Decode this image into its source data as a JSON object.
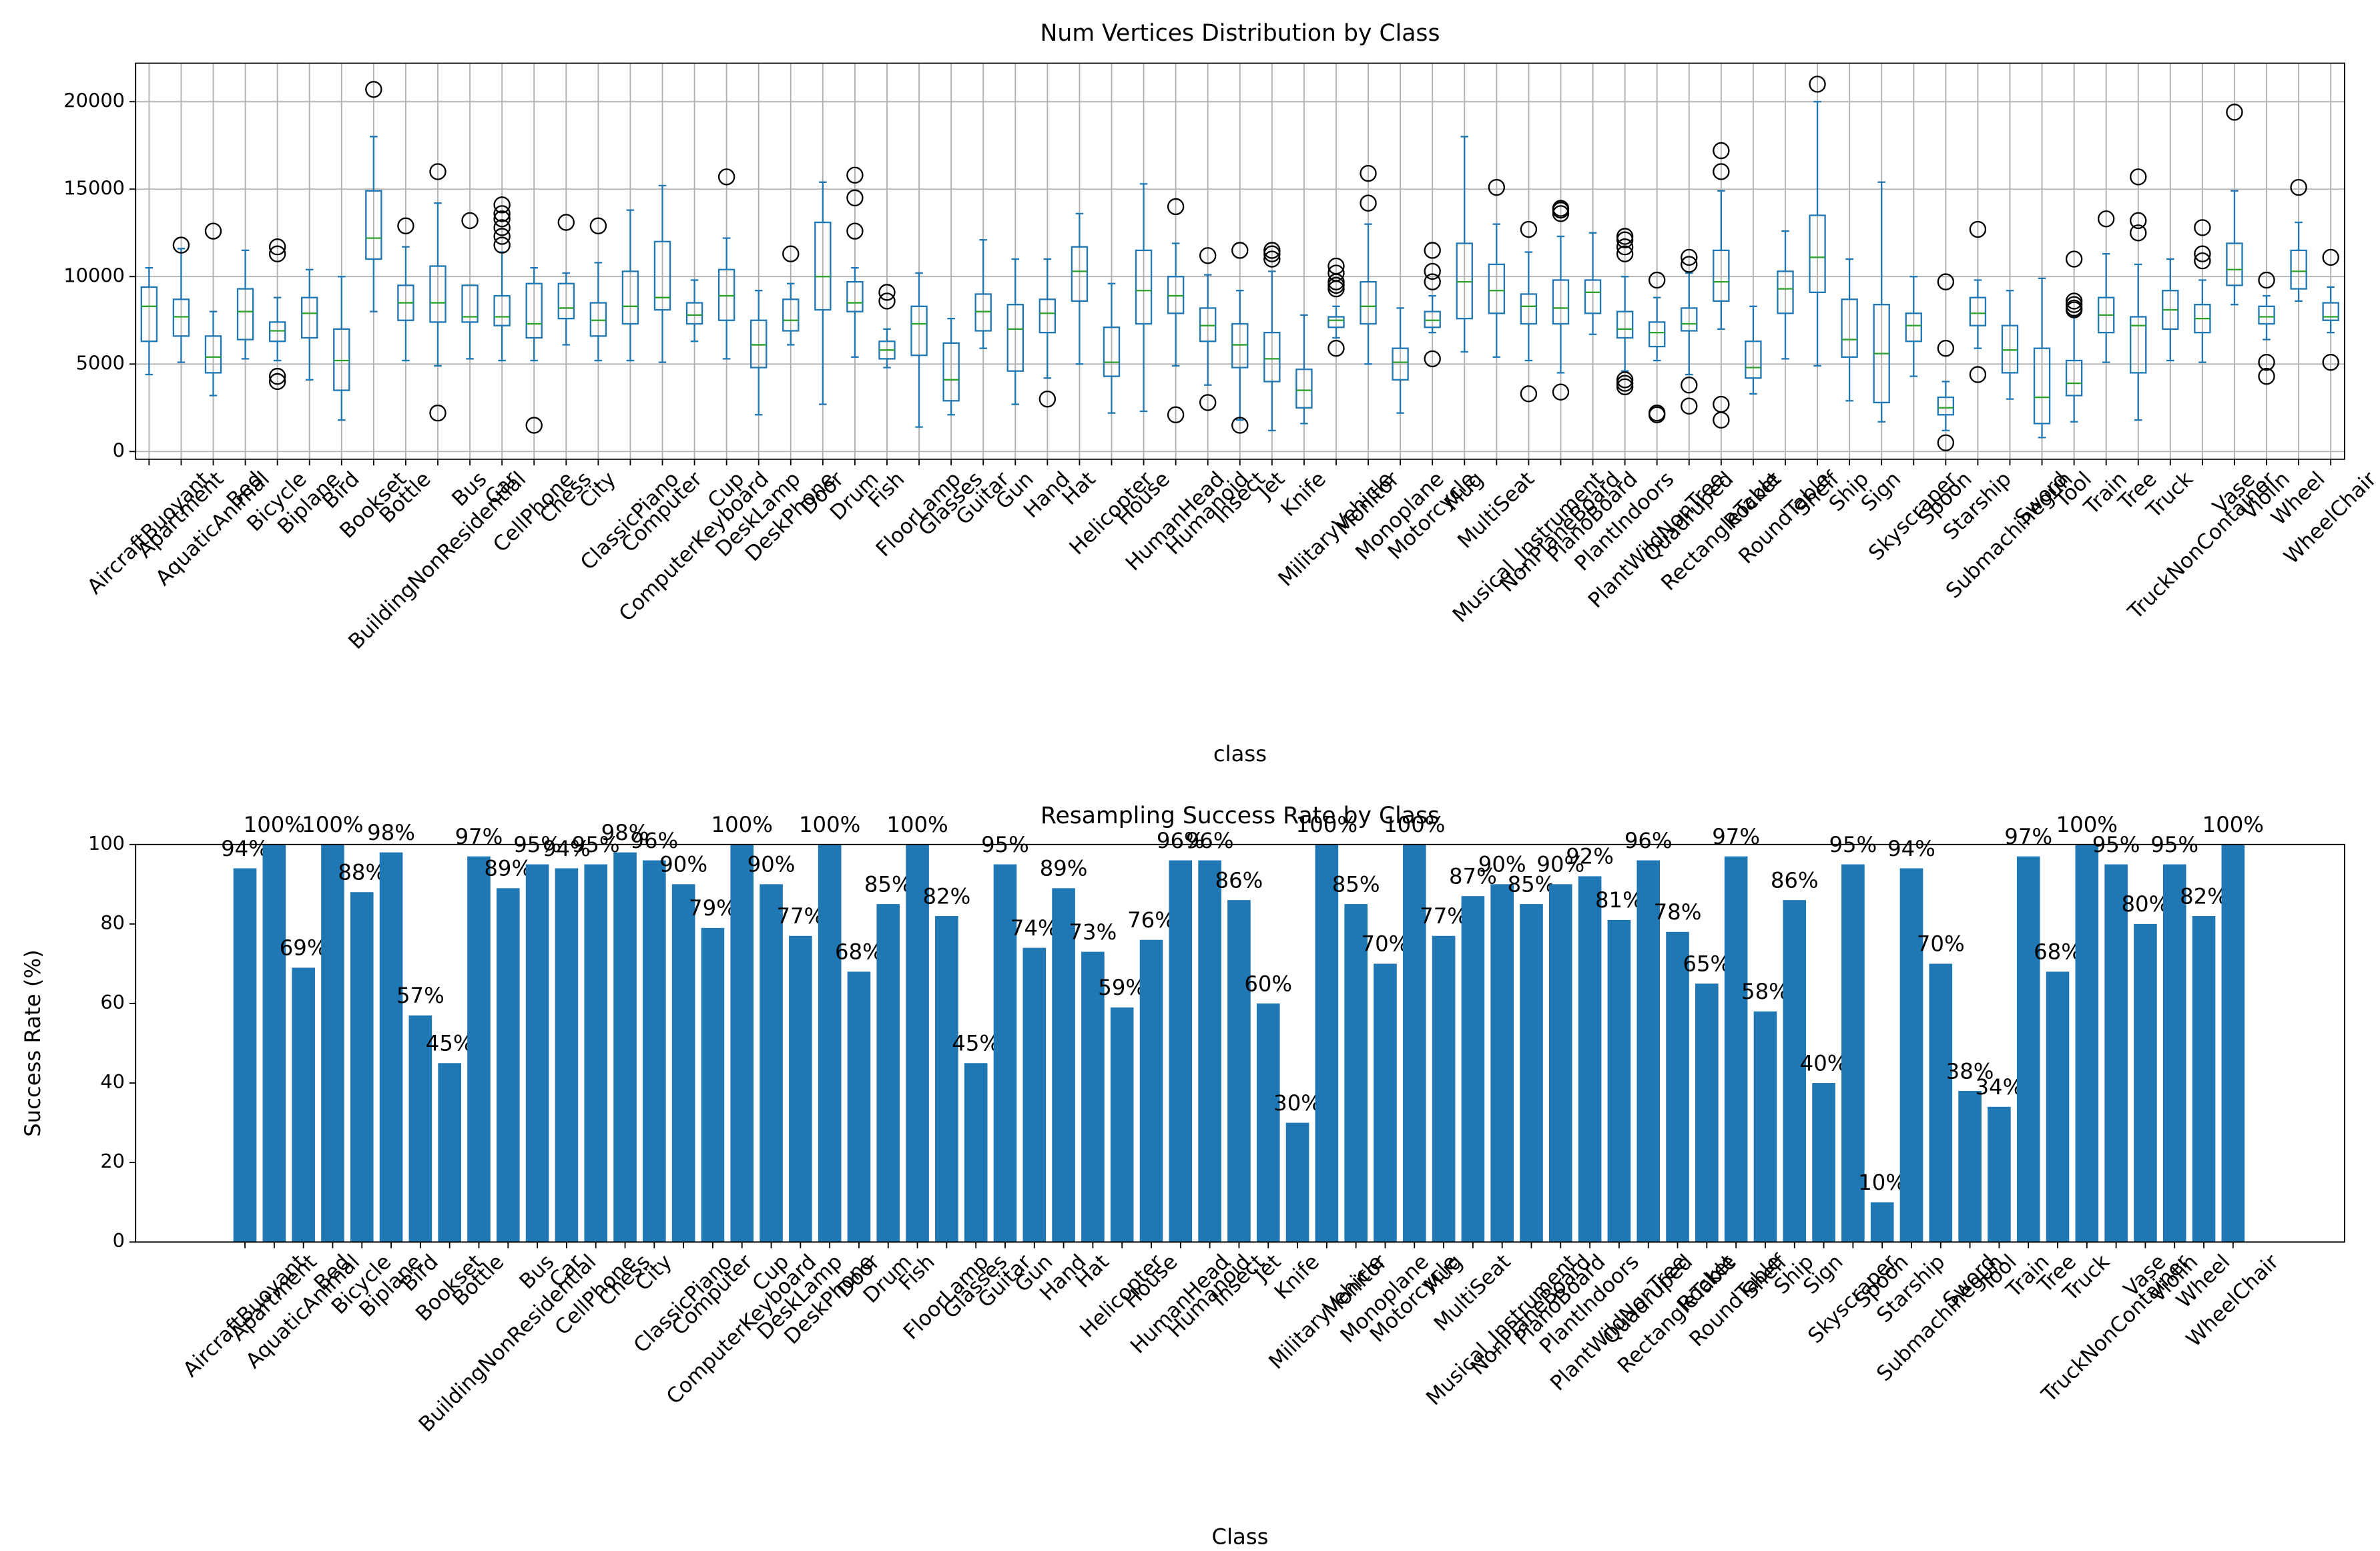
{
  "chart_data": [
    {
      "type": "box",
      "title": "Num Vertices Distribution by Class",
      "xlabel": "class",
      "categories": [
        "AircraftBuoyant",
        "Apartment",
        "AquaticAnimal",
        "Bed",
        "Bicycle",
        "Biplane",
        "Bird",
        "Bookset",
        "Bottle",
        "BuildingNonResidential",
        "Bus",
        "Car",
        "CellPhone",
        "Chess",
        "City",
        "ClassicPiano",
        "Computer",
        "ComputerKeyboard",
        "Cup",
        "DeskLamp",
        "DeskPhone",
        "Door",
        "Drum",
        "Fish",
        "FloorLamp",
        "Glasses",
        "Guitar",
        "Gun",
        "Hand",
        "Hat",
        "Helicopter",
        "House",
        "HumanHead",
        "Humanoid",
        "Insect",
        "Jet",
        "Knife",
        "MilitaryVehicle",
        "Monitor",
        "Monoplane",
        "Motorcycle",
        "Mug",
        "MultiSeat",
        "Musical_Instrument",
        "NonPlaneBoard",
        "PianoBoard",
        "PlantIndoors",
        "PlantWildNonTree",
        "Quadruped",
        "RectangleTable",
        "Rocket",
        "RoundTable",
        "Shelf",
        "Ship",
        "Sign",
        "Skyscraper",
        "Spoon",
        "Starship",
        "Submachinegun",
        "Sword",
        "Tool",
        "Train",
        "Tree",
        "Truck",
        "TruckNonContainer",
        "Vase",
        "Violin",
        "Wheel",
        "WheelChair"
      ],
      "boxes": [
        {
          "whislo": 4400,
          "q1": 6300,
          "med": 8300,
          "q3": 9400,
          "whishi": 10500,
          "fliers": []
        },
        {
          "whislo": 5100,
          "q1": 6600,
          "med": 7700,
          "q3": 8700,
          "whishi": 11600,
          "fliers": [
            11800
          ]
        },
        {
          "whislo": 3200,
          "q1": 4500,
          "med": 5400,
          "q3": 6600,
          "whishi": 8000,
          "fliers": [
            12600
          ]
        },
        {
          "whislo": 5300,
          "q1": 6400,
          "med": 8000,
          "q3": 9300,
          "whishi": 11500,
          "fliers": []
        },
        {
          "whislo": 5200,
          "q1": 6300,
          "med": 6900,
          "q3": 7400,
          "whishi": 8800,
          "fliers": [
            4000,
            4300,
            11300,
            11700
          ]
        },
        {
          "whislo": 4100,
          "q1": 6500,
          "med": 7900,
          "q3": 8800,
          "whishi": 10400,
          "fliers": []
        },
        {
          "whislo": 1800,
          "q1": 3500,
          "med": 5200,
          "q3": 7000,
          "whishi": 10000,
          "fliers": []
        },
        {
          "whislo": 8000,
          "q1": 11000,
          "med": 12200,
          "q3": 14900,
          "whishi": 18000,
          "fliers": [
            20700
          ]
        },
        {
          "whislo": 5200,
          "q1": 7500,
          "med": 8500,
          "q3": 9500,
          "whishi": 11700,
          "fliers": [
            12900
          ]
        },
        {
          "whislo": 4900,
          "q1": 7400,
          "med": 8500,
          "q3": 10600,
          "whishi": 14200,
          "fliers": [
            2200,
            16000
          ]
        },
        {
          "whislo": 5300,
          "q1": 7400,
          "med": 7700,
          "q3": 9500,
          "whishi": 9500,
          "fliers": [
            13200
          ]
        },
        {
          "whislo": 5200,
          "q1": 7200,
          "med": 7700,
          "q3": 8900,
          "whishi": 11400,
          "fliers": [
            11800,
            12300,
            12800,
            13300,
            13600,
            14100
          ]
        },
        {
          "whislo": 5200,
          "q1": 6500,
          "med": 7300,
          "q3": 9600,
          "whishi": 10500,
          "fliers": [
            1500
          ]
        },
        {
          "whislo": 6100,
          "q1": 7600,
          "med": 8200,
          "q3": 9600,
          "whishi": 10200,
          "fliers": [
            13100
          ]
        },
        {
          "whislo": 5200,
          "q1": 6600,
          "med": 7500,
          "q3": 8500,
          "whishi": 10800,
          "fliers": [
            12900
          ]
        },
        {
          "whislo": 5200,
          "q1": 7300,
          "med": 8300,
          "q3": 10300,
          "whishi": 13800,
          "fliers": []
        },
        {
          "whislo": 5100,
          "q1": 8100,
          "med": 8800,
          "q3": 12000,
          "whishi": 15200,
          "fliers": []
        },
        {
          "whislo": 6300,
          "q1": 7300,
          "med": 7800,
          "q3": 8500,
          "whishi": 9800,
          "fliers": []
        },
        {
          "whislo": 5300,
          "q1": 7500,
          "med": 8900,
          "q3": 10400,
          "whishi": 12200,
          "fliers": [
            15700
          ]
        },
        {
          "whislo": 2100,
          "q1": 4800,
          "med": 6100,
          "q3": 7500,
          "whishi": 9200,
          "fliers": []
        },
        {
          "whislo": 6100,
          "q1": 6900,
          "med": 7500,
          "q3": 8700,
          "whishi": 9600,
          "fliers": [
            11300
          ]
        },
        {
          "whislo": 2700,
          "q1": 8100,
          "med": 10000,
          "q3": 13100,
          "whishi": 15400,
          "fliers": []
        },
        {
          "whislo": 5400,
          "q1": 8000,
          "med": 8500,
          "q3": 9700,
          "whishi": 10500,
          "fliers": [
            12600,
            14500,
            15800
          ]
        },
        {
          "whislo": 4800,
          "q1": 5300,
          "med": 5800,
          "q3": 6300,
          "whishi": 7000,
          "fliers": [
            8600,
            9100
          ]
        },
        {
          "whislo": 1400,
          "q1": 5500,
          "med": 7300,
          "q3": 8300,
          "whishi": 10200,
          "fliers": []
        },
        {
          "whislo": 2100,
          "q1": 2900,
          "med": 4100,
          "q3": 6200,
          "whishi": 7600,
          "fliers": []
        },
        {
          "whislo": 5900,
          "q1": 6900,
          "med": 8000,
          "q3": 9000,
          "whishi": 12100,
          "fliers": []
        },
        {
          "whislo": 2700,
          "q1": 4600,
          "med": 7000,
          "q3": 8400,
          "whishi": 11000,
          "fliers": []
        },
        {
          "whislo": 4200,
          "q1": 6800,
          "med": 7900,
          "q3": 8700,
          "whishi": 11000,
          "fliers": [
            3000
          ]
        },
        {
          "whislo": 5000,
          "q1": 8600,
          "med": 10300,
          "q3": 11700,
          "whishi": 13600,
          "fliers": []
        },
        {
          "whislo": 2200,
          "q1": 4300,
          "med": 5100,
          "q3": 7100,
          "whishi": 9600,
          "fliers": []
        },
        {
          "whislo": 2300,
          "q1": 7300,
          "med": 9200,
          "q3": 11500,
          "whishi": 15300,
          "fliers": []
        },
        {
          "whislo": 4900,
          "q1": 7900,
          "med": 8900,
          "q3": 10000,
          "whishi": 11900,
          "fliers": [
            2100,
            14000
          ]
        },
        {
          "whislo": 3800,
          "q1": 6300,
          "med": 7200,
          "q3": 8200,
          "whishi": 10100,
          "fliers": [
            2800,
            11200
          ]
        },
        {
          "whislo": 1800,
          "q1": 4800,
          "med": 6100,
          "q3": 7300,
          "whishi": 9200,
          "fliers": [
            1500,
            11500
          ]
        },
        {
          "whislo": 1200,
          "q1": 4000,
          "med": 5300,
          "q3": 6800,
          "whishi": 10300,
          "fliers": [
            11000,
            11300,
            11500
          ]
        },
        {
          "whislo": 1600,
          "q1": 2500,
          "med": 3500,
          "q3": 4700,
          "whishi": 7800,
          "fliers": []
        },
        {
          "whislo": 6500,
          "q1": 7100,
          "med": 7500,
          "q3": 7700,
          "whishi": 8300,
          "fliers": [
            5900,
            9300,
            9500,
            9700,
            10200,
            10600
          ]
        },
        {
          "whislo": 5000,
          "q1": 7300,
          "med": 8300,
          "q3": 9700,
          "whishi": 13000,
          "fliers": [
            14200,
            15900
          ]
        },
        {
          "whislo": 2200,
          "q1": 4100,
          "med": 5100,
          "q3": 5900,
          "whishi": 8200,
          "fliers": []
        },
        {
          "whislo": 6800,
          "q1": 7100,
          "med": 7500,
          "q3": 8000,
          "whishi": 8900,
          "fliers": [
            5300,
            9700,
            10300,
            11500
          ]
        },
        {
          "whislo": 5700,
          "q1": 7600,
          "med": 9700,
          "q3": 11900,
          "whishi": 18000,
          "fliers": []
        },
        {
          "whislo": 5400,
          "q1": 7900,
          "med": 9200,
          "q3": 10700,
          "whishi": 13000,
          "fliers": [
            15100
          ]
        },
        {
          "whislo": 5200,
          "q1": 7300,
          "med": 8300,
          "q3": 9000,
          "whishi": 11400,
          "fliers": [
            3300,
            12700
          ]
        },
        {
          "whislo": 4500,
          "q1": 7300,
          "med": 8200,
          "q3": 9800,
          "whishi": 12300,
          "fliers": [
            3400,
            13600,
            13800,
            13900
          ]
        },
        {
          "whislo": 6700,
          "q1": 7900,
          "med": 9100,
          "q3": 9800,
          "whishi": 12500,
          "fliers": []
        },
        {
          "whislo": 4600,
          "q1": 6500,
          "med": 7000,
          "q3": 8000,
          "whishi": 10000,
          "fliers": [
            3700,
            3900,
            4100,
            11300,
            11700,
            12100,
            12300
          ]
        },
        {
          "whislo": 5200,
          "q1": 6000,
          "med": 6800,
          "q3": 7400,
          "whishi": 8800,
          "fliers": [
            2100,
            2200,
            9800
          ]
        },
        {
          "whislo": 4400,
          "q1": 6900,
          "med": 7300,
          "q3": 8200,
          "whishi": 10200,
          "fliers": [
            2600,
            3800,
            10700,
            11100
          ]
        },
        {
          "whislo": 7000,
          "q1": 8600,
          "med": 9700,
          "q3": 11500,
          "whishi": 14900,
          "fliers": [
            1800,
            2700,
            16000,
            17200
          ]
        },
        {
          "whislo": 3300,
          "q1": 4200,
          "med": 4800,
          "q3": 6300,
          "whishi": 8300,
          "fliers": []
        },
        {
          "whislo": 5300,
          "q1": 7900,
          "med": 9300,
          "q3": 10300,
          "whishi": 12600,
          "fliers": []
        },
        {
          "whislo": 4900,
          "q1": 9100,
          "med": 11100,
          "q3": 13500,
          "whishi": 20000,
          "fliers": [
            21000
          ]
        },
        {
          "whislo": 2900,
          "q1": 5400,
          "med": 6400,
          "q3": 8700,
          "whishi": 11000,
          "fliers": []
        },
        {
          "whislo": 1700,
          "q1": 2800,
          "med": 5600,
          "q3": 8400,
          "whishi": 15400,
          "fliers": []
        },
        {
          "whislo": 4300,
          "q1": 6300,
          "med": 7200,
          "q3": 7900,
          "whishi": 10000,
          "fliers": []
        },
        {
          "whislo": 1200,
          "q1": 2100,
          "med": 2500,
          "q3": 3100,
          "whishi": 4000,
          "fliers": [
            500,
            5900,
            9700
          ]
        },
        {
          "whislo": 5900,
          "q1": 7200,
          "med": 7900,
          "q3": 8800,
          "whishi": 9800,
          "fliers": [
            4400,
            12700
          ]
        },
        {
          "whislo": 3000,
          "q1": 4500,
          "med": 5800,
          "q3": 7200,
          "whishi": 9200,
          "fliers": []
        },
        {
          "whislo": 800,
          "q1": 1600,
          "med": 3100,
          "q3": 5900,
          "whishi": 9900,
          "fliers": []
        },
        {
          "whislo": 1700,
          "q1": 3200,
          "med": 3900,
          "q3": 5200,
          "whishi": 7700,
          "fliers": [
            8100,
            8200,
            8400,
            8600,
            11000
          ]
        },
        {
          "whislo": 5100,
          "q1": 6800,
          "med": 7800,
          "q3": 8800,
          "whishi": 11300,
          "fliers": [
            13300
          ]
        },
        {
          "whislo": 1800,
          "q1": 4500,
          "med": 7200,
          "q3": 7700,
          "whishi": 10700,
          "fliers": [
            12500,
            13200,
            15700
          ]
        },
        {
          "whislo": 5200,
          "q1": 7000,
          "med": 8100,
          "q3": 9200,
          "whishi": 11000,
          "fliers": []
        },
        {
          "whislo": 5100,
          "q1": 6800,
          "med": 7600,
          "q3": 8400,
          "whishi": 9800,
          "fliers": [
            10900,
            11300,
            12800
          ]
        },
        {
          "whislo": 8400,
          "q1": 9500,
          "med": 10400,
          "q3": 11900,
          "whishi": 14900,
          "fliers": [
            19400
          ]
        },
        {
          "whislo": 6400,
          "q1": 7300,
          "med": 7700,
          "q3": 8300,
          "whishi": 8900,
          "fliers": [
            4300,
            5100,
            9800
          ]
        },
        {
          "whislo": 8600,
          "q1": 9300,
          "med": 10300,
          "q3": 11500,
          "whishi": 13100,
          "fliers": [
            15100
          ]
        },
        {
          "whislo": 6800,
          "q1": 7500,
          "med": 7700,
          "q3": 8500,
          "whishi": 9400,
          "fliers": [
            5100,
            11100
          ]
        }
      ],
      "ylim": [
        -440,
        22200
      ],
      "yticks": [
        0,
        5000,
        10000,
        15000,
        20000
      ],
      "grid": true,
      "color": "#1f77b4",
      "median_color": "#2ca02c"
    },
    {
      "type": "bar",
      "title": "Resampling Success Rate by Class",
      "xlabel": "Class",
      "ylabel": "Success Rate (%)",
      "categories": [
        "AircraftBuoyant",
        "Apartment",
        "AquaticAnimal",
        "Bed",
        "Bicycle",
        "Biplane",
        "Bird",
        "Bookset",
        "Bottle",
        "BuildingNonResidential",
        "Bus",
        "Car",
        "CellPhone",
        "Chess",
        "City",
        "ClassicPiano",
        "Computer",
        "ComputerKeyboard",
        "Cup",
        "DeskLamp",
        "DeskPhone",
        "Door",
        "Drum",
        "Fish",
        "FloorLamp",
        "Glasses",
        "Guitar",
        "Gun",
        "Hand",
        "Hat",
        "Helicopter",
        "House",
        "HumanHead",
        "Humanoid",
        "Insect",
        "Jet",
        "Knife",
        "MilitaryVehicle",
        "Monitor",
        "Monoplane",
        "Motorcycle",
        "Mug",
        "MultiSeat",
        "Musical_Instrument",
        "NonPlaneBoard",
        "PianoBoard",
        "PlantIndoors",
        "PlantWildNonTree",
        "Quadruped",
        "RectangleTable",
        "Rocket",
        "RoundTable",
        "Shelf",
        "Ship",
        "Sign",
        "Skyscraper",
        "Spoon",
        "Starship",
        "Submachinegun",
        "Sword",
        "Tool",
        "Train",
        "Tree",
        "Truck",
        "TruckNonContainer",
        "Vase",
        "Violin",
        "Wheel",
        "WheelChair"
      ],
      "values": [
        94,
        100,
        69,
        100,
        88,
        98,
        57,
        45,
        97,
        89,
        95,
        94,
        95,
        98,
        96,
        90,
        79,
        100,
        90,
        77,
        100,
        68,
        85,
        100,
        82,
        45,
        95,
        74,
        89,
        73,
        59,
        76,
        96,
        96,
        86,
        60,
        30,
        100,
        85,
        70,
        100,
        77,
        87,
        90,
        85,
        90,
        92,
        81,
        96,
        78,
        65,
        97,
        58,
        86,
        40,
        95,
        10,
        94,
        70,
        38,
        34,
        97,
        68,
        100,
        95,
        80,
        95,
        82,
        100
      ],
      "value_labels": [
        "94%",
        "100%",
        "69%",
        "100%",
        "88%",
        "98%",
        "57%",
        "45%",
        "97%",
        "89%",
        "95%",
        "94%",
        "95%",
        "98%",
        "96%",
        "90%",
        "79%",
        "100%",
        "90%",
        "77%",
        "100%",
        "68%",
        "85%",
        "100%",
        "82%",
        "45%",
        "95%",
        "74%",
        "89%",
        "73%",
        "59%",
        "76%",
        "96%",
        "96%",
        "86%",
        "60%",
        "30%",
        "100%",
        "85%",
        "70%",
        "100%",
        "77%",
        "87%",
        "90%",
        "85%",
        "90%",
        "92%",
        "81%",
        "96%",
        "78%",
        "65%",
        "97%",
        "58%",
        "86%",
        "40%",
        "95%",
        "10%",
        "94%",
        "70%",
        "38%",
        "34%",
        "97%",
        "68%",
        "100%",
        "95%",
        "80%",
        "95%",
        "82%",
        "100%"
      ],
      "ylim": [
        0,
        100
      ],
      "yticks": [
        0,
        20,
        40,
        60,
        80,
        100
      ],
      "grid": false,
      "color": "#1f77b4"
    }
  ]
}
